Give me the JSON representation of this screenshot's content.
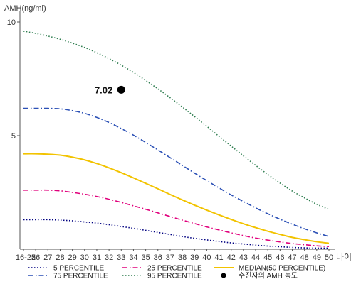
{
  "chart_data": {
    "type": "line",
    "ylabel": "AMH(ng/ml)",
    "xlabel": "나이",
    "x": [
      "16-25",
      "26",
      "27",
      "28",
      "29",
      "30",
      "31",
      "32",
      "33",
      "34",
      "35",
      "36",
      "37",
      "38",
      "39",
      "40",
      "41",
      "42",
      "43",
      "44",
      "45",
      "46",
      "47",
      "48",
      "49",
      "50"
    ],
    "ylim": [
      0,
      10.5
    ],
    "yticks": [
      "5",
      "10"
    ],
    "yticks_values": [
      5,
      10
    ],
    "grid": false,
    "legend_position": "bottom",
    "series": [
      {
        "name": "5 PERCENTILE",
        "color": "#000080",
        "style": "dotted",
        "values": [
          1.3,
          1.3,
          1.3,
          1.28,
          1.25,
          1.2,
          1.15,
          1.08,
          1.0,
          0.92,
          0.83,
          0.74,
          0.65,
          0.56,
          0.48,
          0.41,
          0.34,
          0.28,
          0.23,
          0.18,
          0.14,
          0.11,
          0.08,
          0.06,
          0.05,
          0.05
        ]
      },
      {
        "name": "25 PERCENTILE",
        "color": "#e0007c",
        "style": "dashdot",
        "values": [
          2.6,
          2.6,
          2.6,
          2.57,
          2.5,
          2.42,
          2.32,
          2.2,
          2.06,
          1.91,
          1.76,
          1.6,
          1.44,
          1.28,
          1.13,
          0.98,
          0.85,
          0.72,
          0.6,
          0.49,
          0.4,
          0.32,
          0.25,
          0.2,
          0.15,
          0.12
        ]
      },
      {
        "name": "MEDIAN(50 PERCENTILE)",
        "color": "#f2c300",
        "style": "solid",
        "values": [
          4.2,
          4.2,
          4.18,
          4.14,
          4.05,
          3.93,
          3.77,
          3.58,
          3.37,
          3.14,
          2.9,
          2.66,
          2.41,
          2.17,
          1.94,
          1.72,
          1.51,
          1.31,
          1.12,
          0.95,
          0.79,
          0.65,
          0.52,
          0.42,
          0.33,
          0.26
        ]
      },
      {
        "name": "75 PERCENTILE",
        "color": "#2a4fb5",
        "style": "dashdot",
        "values": [
          6.2,
          6.2,
          6.2,
          6.18,
          6.1,
          5.98,
          5.8,
          5.58,
          5.31,
          5.02,
          4.7,
          4.37,
          4.03,
          3.69,
          3.35,
          3.02,
          2.7,
          2.39,
          2.1,
          1.82,
          1.56,
          1.32,
          1.1,
          0.9,
          0.72,
          0.56
        ]
      },
      {
        "name": "95 PERCENTILE",
        "color": "#2e7d4f",
        "style": "dotted",
        "values": [
          9.6,
          9.5,
          9.38,
          9.24,
          9.07,
          8.88,
          8.65,
          8.39,
          8.1,
          7.78,
          7.43,
          7.06,
          6.67,
          6.26,
          5.84,
          5.41,
          4.97,
          4.54,
          4.11,
          3.69,
          3.29,
          2.91,
          2.56,
          2.26,
          1.98,
          1.75
        ]
      }
    ],
    "points": [
      {
        "name": "수진자의 AMH 농도",
        "x": "33",
        "y": 7.02,
        "label": "7.02",
        "color": "#000000"
      }
    ]
  }
}
